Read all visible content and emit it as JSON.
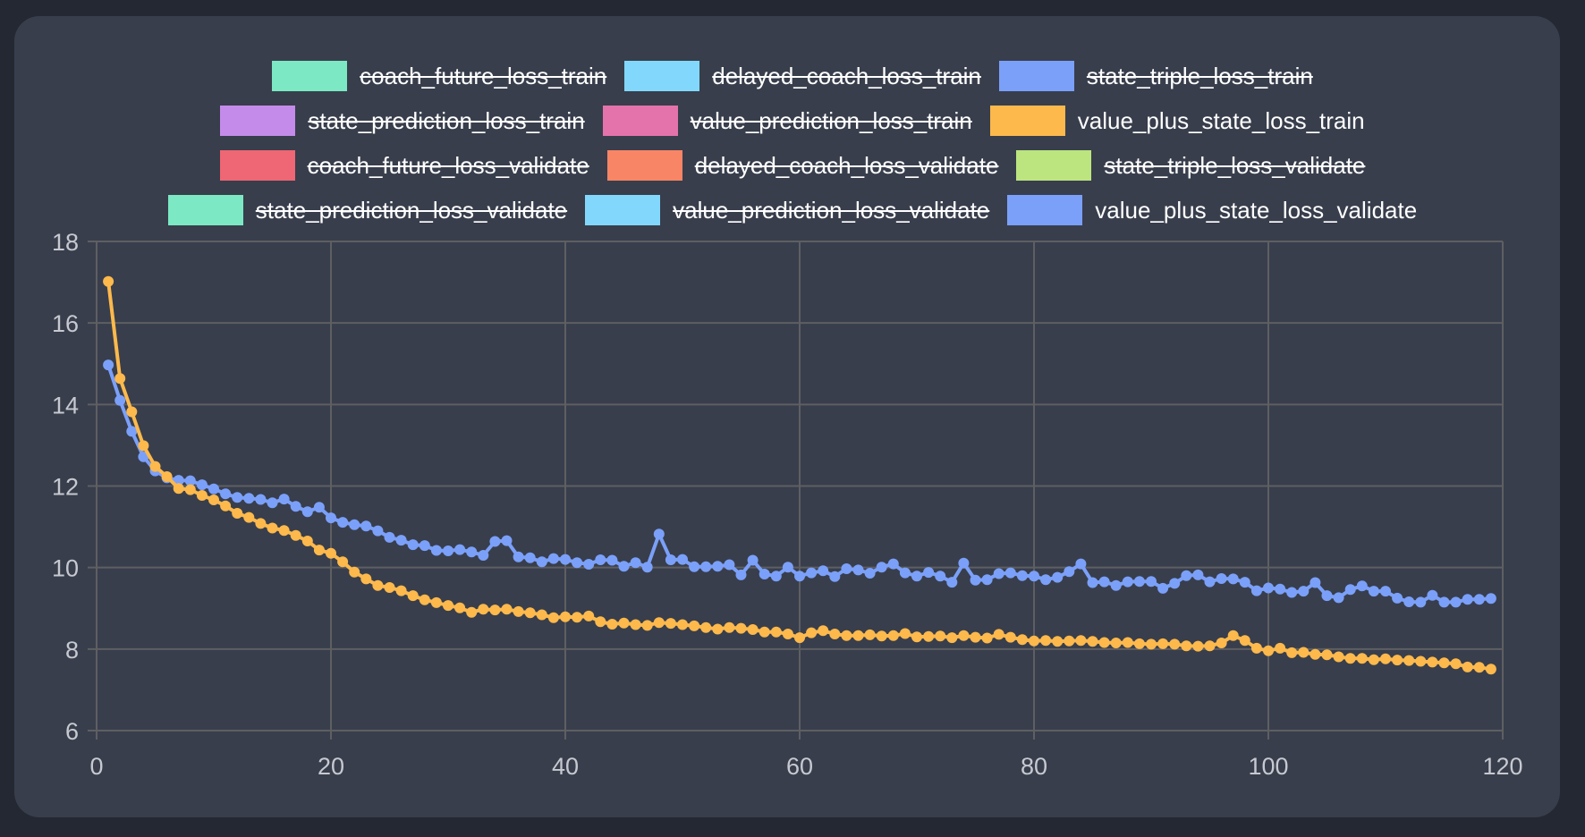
{
  "legend": {
    "rows": [
      [
        {
          "label": "coach_future_loss_train",
          "color": "#7ce8c4",
          "hidden": true
        },
        {
          "label": "delayed_coach_loss_train",
          "color": "#82d8fc",
          "hidden": true
        },
        {
          "label": "state_triple_loss_train",
          "color": "#7ba0f9",
          "hidden": true
        }
      ],
      [
        {
          "label": "state_prediction_loss_train",
          "color": "#c48bea",
          "hidden": true
        },
        {
          "label": "value_prediction_loss_train",
          "color": "#e473ab",
          "hidden": true
        },
        {
          "label": "value_plus_state_loss_train",
          "color": "#fdb94c",
          "hidden": false
        }
      ],
      [
        {
          "label": "coach_future_loss_validate",
          "color": "#ef6674",
          "hidden": true
        },
        {
          "label": "delayed_coach_loss_validate",
          "color": "#f88565",
          "hidden": true
        },
        {
          "label": "state_triple_loss_validate",
          "color": "#bce57f",
          "hidden": true
        }
      ],
      [
        {
          "label": "state_prediction_loss_validate",
          "color": "#7ce8c4",
          "hidden": true
        },
        {
          "label": "value_prediction_loss_validate",
          "color": "#82d8fc",
          "hidden": true
        },
        {
          "label": "value_plus_state_loss_validate",
          "color": "#7ba0f9",
          "hidden": false
        }
      ]
    ]
  },
  "chart_data": {
    "type": "line",
    "xlim": [
      0,
      120
    ],
    "ylim": [
      6,
      18
    ],
    "xticks": [
      0,
      20,
      40,
      60,
      80,
      100,
      120
    ],
    "yticks": [
      6,
      8,
      10,
      12,
      14,
      16,
      18
    ],
    "grid": true,
    "legend_position": "top",
    "series": [
      {
        "name": "value_plus_state_loss_validate",
        "color": "#7ba0f9",
        "x_start": 1,
        "values": [
          14.97,
          14.1,
          13.34,
          12.72,
          12.37,
          12.2,
          12.14,
          12.13,
          12.03,
          11.93,
          11.81,
          11.72,
          11.7,
          11.67,
          11.59,
          11.68,
          11.5,
          11.37,
          11.48,
          11.22,
          11.11,
          11.05,
          11.02,
          10.9,
          10.74,
          10.67,
          10.56,
          10.54,
          10.42,
          10.41,
          10.44,
          10.38,
          10.3,
          10.64,
          10.66,
          10.26,
          10.24,
          10.14,
          10.22,
          10.2,
          10.12,
          10.08,
          10.19,
          10.18,
          10.03,
          10.12,
          10.01,
          10.82,
          10.19,
          10.2,
          10.02,
          10.02,
          10.03,
          10.07,
          9.82,
          10.18,
          9.84,
          9.79,
          10.01,
          9.79,
          9.87,
          9.92,
          9.78,
          9.97,
          9.94,
          9.86,
          10.01,
          10.09,
          9.87,
          9.79,
          9.88,
          9.79,
          9.64,
          10.11,
          9.69,
          9.7,
          9.85,
          9.87,
          9.8,
          9.79,
          9.7,
          9.76,
          9.9,
          10.09,
          9.63,
          9.65,
          9.56,
          9.65,
          9.66,
          9.66,
          9.49,
          9.61,
          9.8,
          9.82,
          9.65,
          9.73,
          9.72,
          9.64,
          9.43,
          9.5,
          9.47,
          9.39,
          9.42,
          9.63,
          9.31,
          9.26,
          9.46,
          9.55,
          9.42,
          9.42,
          9.25,
          9.16,
          9.15,
          9.32,
          9.15,
          9.15,
          9.22,
          9.22,
          9.24
        ]
      },
      {
        "name": "value_plus_state_loss_train",
        "color": "#fdb94c",
        "x_start": 1,
        "values": [
          17.02,
          14.64,
          13.82,
          12.99,
          12.48,
          12.23,
          11.94,
          11.91,
          11.77,
          11.66,
          11.51,
          11.33,
          11.23,
          11.08,
          10.97,
          10.91,
          10.79,
          10.65,
          10.43,
          10.35,
          10.14,
          9.89,
          9.72,
          9.56,
          9.51,
          9.43,
          9.31,
          9.21,
          9.14,
          9.07,
          9.01,
          8.9,
          8.98,
          8.96,
          8.98,
          8.92,
          8.89,
          8.84,
          8.77,
          8.79,
          8.78,
          8.81,
          8.67,
          8.61,
          8.64,
          8.6,
          8.58,
          8.65,
          8.63,
          8.6,
          8.57,
          8.53,
          8.49,
          8.53,
          8.51,
          8.48,
          8.42,
          8.42,
          8.37,
          8.28,
          8.4,
          8.45,
          8.37,
          8.33,
          8.33,
          8.35,
          8.32,
          8.33,
          8.38,
          8.3,
          8.31,
          8.32,
          8.28,
          8.33,
          8.29,
          8.27,
          8.36,
          8.29,
          8.23,
          8.2,
          8.21,
          8.19,
          8.2,
          8.21,
          8.19,
          8.16,
          8.15,
          8.16,
          8.13,
          8.12,
          8.13,
          8.12,
          8.08,
          8.07,
          8.08,
          8.15,
          8.33,
          8.21,
          8.02,
          7.96,
          8.02,
          7.91,
          7.92,
          7.87,
          7.86,
          7.81,
          7.77,
          7.77,
          7.74,
          7.76,
          7.73,
          7.72,
          7.7,
          7.68,
          7.66,
          7.64,
          7.56,
          7.55,
          7.51
        ]
      }
    ]
  }
}
